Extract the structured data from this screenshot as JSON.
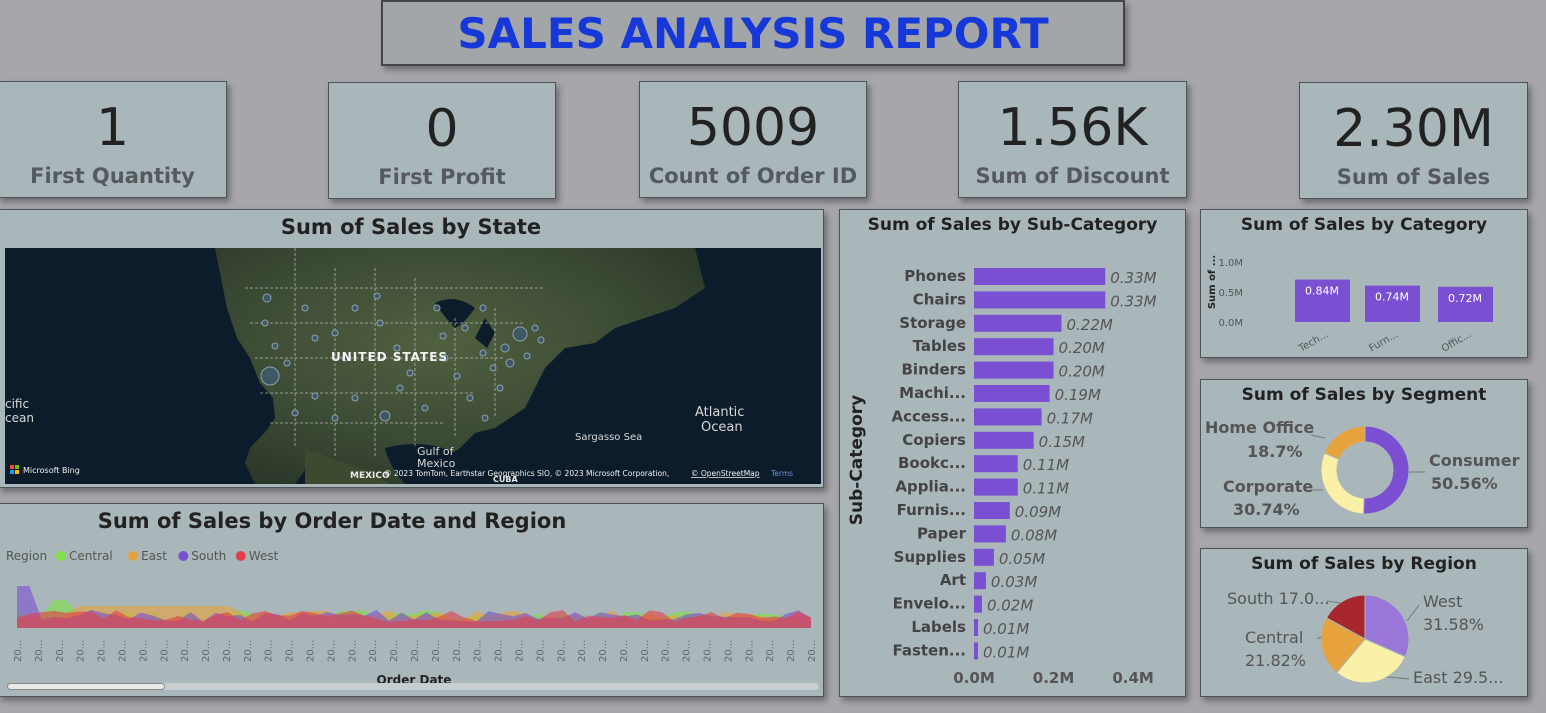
{
  "report_title": "SALES ANALYSIS REPORT",
  "kpis": [
    {
      "value": "1",
      "label": "First Quantity"
    },
    {
      "value": "0",
      "label": "First Profit"
    },
    {
      "value": "5009",
      "label": "Count of Order ID"
    },
    {
      "value": "1.56K",
      "label": "Sum of Discount"
    },
    {
      "value": "2.30M",
      "label": "Sum of Sales"
    }
  ],
  "map": {
    "title": "Sum of Sales by State",
    "country_label": "UNITED STATES",
    "pacific_label_1": "cific",
    "pacific_label_2": "cean",
    "atlantic_label_1": "Atlantic",
    "atlantic_label_2": "Ocean",
    "sargasso_label": "Sargasso Sea",
    "gulf_label_1": "Gulf of",
    "gulf_label_2": "Mexico",
    "mexico_label": "MEXICO",
    "cuba_label": "CUBA",
    "bing_label": "Microsoft Bing",
    "copyright": "© 2023 TomTom, Earthstar Geographics SIO, © 2023 Microsoft Corporation,",
    "osm_link": "© OpenStreetMap",
    "terms_link": "Terms"
  },
  "timeline": {
    "title": "Sum of Sales by Order Date and Region",
    "legend_title": "Region",
    "xlabel": "Order Date",
    "tick_labels": [
      "20...",
      "20...",
      "20...",
      "20...",
      "20...",
      "20...",
      "20...",
      "20...",
      "20...",
      "20...",
      "20...",
      "20...",
      "20...",
      "20...",
      "20...",
      "20...",
      "20...",
      "20...",
      "20...",
      "20...",
      "20...",
      "20...",
      "20...",
      "20...",
      "20...",
      "20...",
      "20...",
      "20...",
      "20...",
      "20...",
      "20...",
      "20...",
      "20...",
      "20...",
      "20...",
      "20...",
      "20...",
      "20...",
      "20..."
    ],
    "colors": {
      "Central": "#7ee042",
      "East": "#e6a23c",
      "South": "#7a4fd1",
      "West": "#e0404c"
    }
  },
  "chart_data": [
    {
      "type": "bar",
      "orientation": "horizontal",
      "title": "Sum of Sales by Sub-Category",
      "ylabel": "Sub-Category",
      "categories": [
        "Phones",
        "Chairs",
        "Storage",
        "Tables",
        "Binders",
        "Machi...",
        "Access...",
        "Copiers",
        "Bookc...",
        "Applia...",
        "Furnis...",
        "Paper",
        "Supplies",
        "Art",
        "Envelo...",
        "Labels",
        "Fasten..."
      ],
      "values": [
        0.33,
        0.33,
        0.22,
        0.2,
        0.2,
        0.19,
        0.17,
        0.15,
        0.11,
        0.11,
        0.09,
        0.08,
        0.05,
        0.03,
        0.02,
        0.01,
        0.01
      ],
      "data_labels": [
        "0.33M",
        "0.33M",
        "0.22M",
        "0.20M",
        "0.20M",
        "0.19M",
        "0.17M",
        "0.15M",
        "0.11M",
        "0.11M",
        "0.09M",
        "0.08M",
        "0.05M",
        "0.03M",
        "0.02M",
        "0.01M",
        "0.01M"
      ],
      "x_ticks": [
        "0.0M",
        "0.2M",
        "0.4M"
      ],
      "xlim": [
        0,
        0.44
      ],
      "color": "#7a4fd1"
    },
    {
      "type": "bar",
      "title": "Sum of Sales by Category",
      "ylabel": "Sum of ...",
      "categories": [
        "Tech...",
        "Furn...",
        "Offic..."
      ],
      "values": [
        0.84,
        0.74,
        0.72
      ],
      "data_labels": [
        "0.84M",
        "0.74M",
        "0.72M"
      ],
      "y_ticks": [
        "1.0M",
        "0.5M",
        "0.0M"
      ],
      "ylim": [
        0,
        1.0
      ],
      "color": "#7a4fd1"
    },
    {
      "type": "pie",
      "donut": true,
      "title": "Sum of Sales by Segment",
      "categories": [
        "Consumer",
        "Corporate",
        "Home Office"
      ],
      "values": [
        50.56,
        30.74,
        18.7
      ],
      "data_labels": [
        "50.56%",
        "30.74%",
        "18.7%"
      ],
      "colors": [
        "#7a4fd1",
        "#fbf0a8",
        "#e6a23c"
      ]
    },
    {
      "type": "pie",
      "title": "Sum of Sales by Region",
      "categories": [
        "West",
        "East",
        "Central",
        "South"
      ],
      "values": [
        31.58,
        29.5,
        21.82,
        17.0
      ],
      "data_labels": [
        "31.58%",
        "29.5...",
        "21.82%",
        "17.0..."
      ],
      "colors": [
        "#9a76d8",
        "#fbf0a8",
        "#e6a23c",
        "#a8262e"
      ]
    }
  ]
}
